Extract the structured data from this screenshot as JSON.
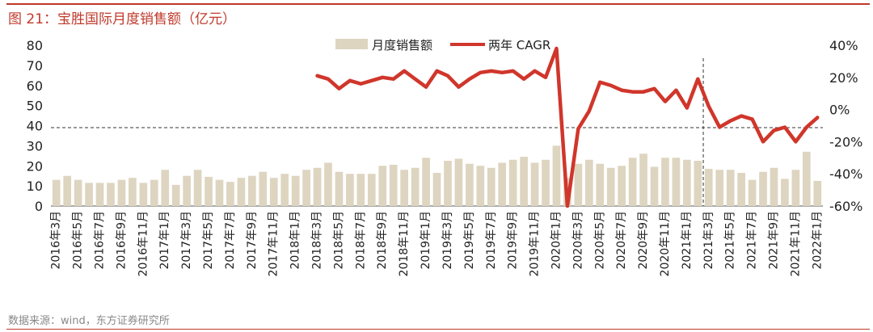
{
  "title": "图 21：宝胜国际月度销售额（亿元）",
  "source": "数据来源：wind，东方证券研究所",
  "colors": {
    "accent": "#c0392b",
    "bar": "#ddd5c0",
    "line": "#d0362b"
  },
  "chart_data": {
    "type": "bar",
    "left_axis": {
      "ylim": [
        0,
        80
      ],
      "ticks": [
        0,
        10,
        20,
        30,
        40,
        50,
        60,
        70,
        80
      ]
    },
    "right_axis": {
      "ylim": [
        -60,
        40
      ],
      "ticks": [
        -60,
        -40,
        -20,
        0,
        20,
        40
      ],
      "tick_labels": [
        "-60%",
        "-40%",
        "-20%",
        "0%",
        "20%",
        "40%"
      ]
    },
    "x_tick_labels": [
      "2016年3月",
      "2016年5月",
      "2016年7月",
      "2016年9月",
      "2016年11月",
      "2017年1月",
      "2017年3月",
      "2017年5月",
      "2017年7月",
      "2017年9月",
      "2017年11月",
      "2018年1月",
      "2018年3月",
      "2018年5月",
      "2018年7月",
      "2018年9月",
      "2018年11月",
      "2019年1月",
      "2019年3月",
      "2019年5月",
      "2019年7月",
      "2019年9月",
      "2019年11月",
      "2020年1月",
      "2020年3月",
      "2020年5月",
      "2020年7月",
      "2020年9月",
      "2020年11月",
      "2021年1月",
      "2021年3月",
      "2021年5月",
      "2021年7月",
      "2021年9月",
      "2021年11月",
      "2022年1月"
    ],
    "reference_line_y": 39,
    "divider_after_index": 60,
    "series": [
      {
        "name": "月度销售额",
        "kind": "bar",
        "axis": "left",
        "values": [
          13,
          15,
          13,
          11.5,
          11.5,
          11.5,
          13,
          14,
          11.5,
          13,
          18,
          10.5,
          15,
          18,
          14.5,
          13,
          12,
          14,
          15,
          17,
          14,
          16,
          15,
          18,
          19,
          21.5,
          17,
          16,
          16,
          16,
          20,
          20.5,
          18,
          19,
          24,
          16.5,
          22.5,
          23.5,
          21,
          20,
          19,
          21.5,
          23,
          24.5,
          21.5,
          23,
          30,
          14,
          21,
          23,
          21,
          19,
          20,
          24,
          26,
          19.5,
          24,
          24,
          23,
          22.5,
          18.5,
          18,
          18,
          16.5,
          13,
          17,
          19,
          13.5,
          18,
          27,
          12.5
        ]
      },
      {
        "name": "两年 CAGR",
        "kind": "line",
        "axis": "right",
        "values": [
          null,
          null,
          null,
          null,
          null,
          null,
          null,
          null,
          null,
          null,
          null,
          null,
          null,
          null,
          null,
          null,
          null,
          null,
          null,
          null,
          null,
          null,
          null,
          null,
          21,
          19,
          13,
          18,
          16,
          18,
          20,
          19,
          24,
          19,
          14,
          24,
          21,
          14,
          19,
          23,
          24,
          23,
          24,
          19,
          24,
          20,
          38,
          -60,
          -12,
          -1,
          17,
          15,
          12,
          11,
          11,
          13,
          5,
          12,
          1,
          19,
          2,
          -11,
          -7,
          -4,
          -6,
          -20,
          -13,
          -11,
          -20,
          -11,
          -5
        ]
      }
    ]
  }
}
